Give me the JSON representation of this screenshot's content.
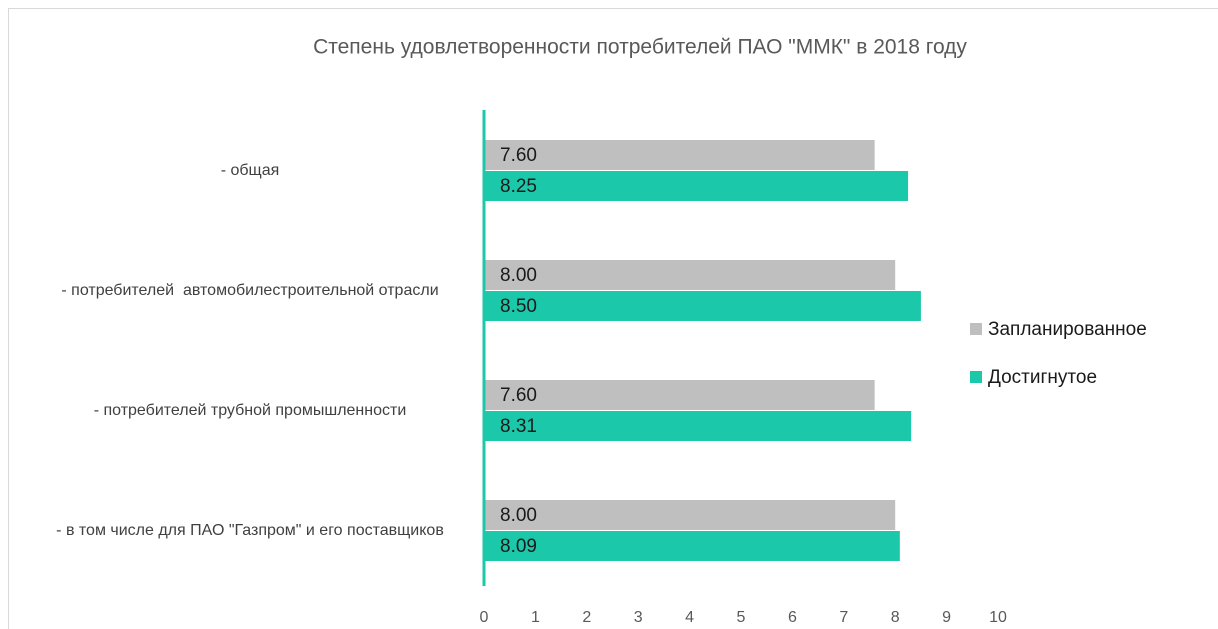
{
  "chart_data": {
    "type": "barh",
    "title": "Степень удовлетворенности потребителей ПАО \"ММК\" в 2018 году",
    "categories": [
      "- общая",
      "- потребителей  автомобилестроительной отрасли",
      "- потребителей трубной промышленности",
      "- в том числе для ПАО \"Газпром\" и его поставщиков"
    ],
    "series": [
      {
        "name": "Запланированное",
        "color": "#bfbfbf",
        "values": [
          7.6,
          8.0,
          7.6,
          8.0
        ],
        "value_labels": [
          "7.60",
          "8.00",
          "7.60",
          "8.00"
        ]
      },
      {
        "name": "Достигнутое",
        "color": "#1bc8aa",
        "values": [
          8.25,
          8.5,
          8.31,
          8.09
        ],
        "value_labels": [
          "8.25",
          "8.50",
          "8.31",
          "8.09"
        ]
      }
    ],
    "xlim": [
      0,
      10
    ],
    "xticks": [
      0,
      1,
      2,
      3,
      4,
      5,
      6,
      7,
      8,
      9,
      10
    ],
    "legend": "right"
  }
}
